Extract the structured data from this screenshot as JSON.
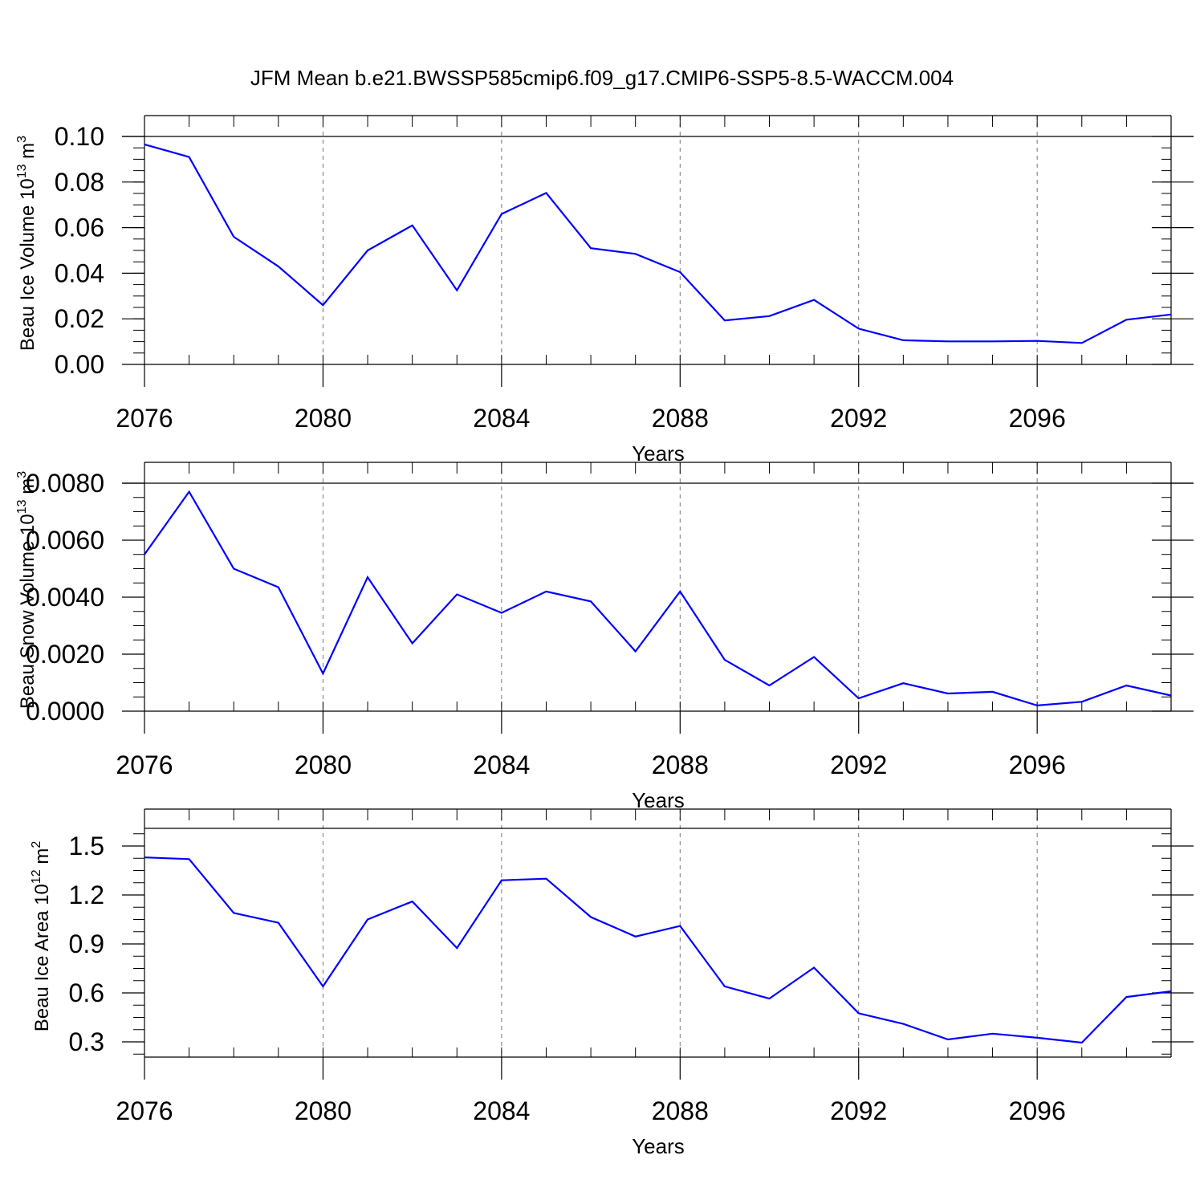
{
  "title": "JFM Mean b.e21.BWSSP585cmip6.f09_g17.CMIP6-SSP5-8.5-WACCM.004",
  "colors": {
    "line": "#0000ff",
    "axis": "#000000",
    "grid": "#777777"
  },
  "chart_data": [
    {
      "type": "line",
      "ylabel": "Beau Ice Volume 10",
      "ylabel_exp": "13",
      "ylabel_unit": "m",
      "ylabel_unit_exp": "3",
      "xlabel": "Years",
      "xlim": [
        2076,
        2099
      ],
      "ylim": [
        0.0,
        0.1
      ],
      "yticks": [
        0.0,
        0.02,
        0.04,
        0.06,
        0.08,
        0.1
      ],
      "ytick_labels": [
        "0.00",
        "0.02",
        "0.04",
        "0.06",
        "0.08",
        "0.10"
      ],
      "xticks": [
        2076,
        2080,
        2084,
        2088,
        2092,
        2096
      ],
      "xtick_labels": [
        "2076",
        "2080",
        "2084",
        "2088",
        "2092",
        "2096"
      ],
      "x": [
        2076,
        2077,
        2078,
        2079,
        2080,
        2081,
        2082,
        2083,
        2084,
        2085,
        2086,
        2087,
        2088,
        2089,
        2090,
        2091,
        2092,
        2093,
        2094,
        2095,
        2096,
        2097,
        2098,
        2099
      ],
      "values": [
        0.0965,
        0.091,
        0.056,
        0.043,
        0.026,
        0.05,
        0.061,
        0.0325,
        0.066,
        0.0752,
        0.051,
        0.0485,
        0.0405,
        0.0193,
        0.0212,
        0.0283,
        0.0157,
        0.0106,
        0.0101,
        0.0101,
        0.0103,
        0.0094,
        0.0196,
        0.0219
      ]
    },
    {
      "type": "line",
      "ylabel": "Beau Snow Volume 10",
      "ylabel_exp": "13",
      "ylabel_unit": "m",
      "ylabel_unit_exp": "3",
      "xlabel": "Years",
      "xlim": [
        2076,
        2099
      ],
      "ylim": [
        0.0,
        0.008
      ],
      "yticks": [
        0.0,
        0.002,
        0.004,
        0.006,
        0.008
      ],
      "ytick_labels": [
        "0.0000",
        "0.0020",
        "0.0040",
        "0.0060",
        "0.0080"
      ],
      "xticks": [
        2076,
        2080,
        2084,
        2088,
        2092,
        2096
      ],
      "xtick_labels": [
        "2076",
        "2080",
        "2084",
        "2088",
        "2092",
        "2096"
      ],
      "x": [
        2076,
        2077,
        2078,
        2079,
        2080,
        2081,
        2082,
        2083,
        2084,
        2085,
        2086,
        2087,
        2088,
        2089,
        2090,
        2091,
        2092,
        2093,
        2094,
        2095,
        2096,
        2097,
        2098,
        2099
      ],
      "values": [
        0.0055,
        0.0077,
        0.005,
        0.00435,
        0.00132,
        0.0047,
        0.00238,
        0.0041,
        0.00345,
        0.0042,
        0.00385,
        0.0021,
        0.0042,
        0.0018,
        0.0009,
        0.0019,
        0.00045,
        0.00098,
        0.00062,
        0.00068,
        0.0002,
        0.00033,
        0.0009,
        0.00055
      ]
    },
    {
      "type": "line",
      "ylabel": "Beau Ice Area 10",
      "ylabel_exp": "12",
      "ylabel_unit": "m",
      "ylabel_unit_exp": "2",
      "xlabel": "Years",
      "xlim": [
        2076,
        2099
      ],
      "ylim": [
        0.2,
        1.6
      ],
      "yticks": [
        0.3,
        0.6,
        0.9,
        1.2,
        1.5
      ],
      "ytick_labels": [
        "0.3",
        "0.6",
        "0.9",
        "1.2",
        "1.5"
      ],
      "xticks": [
        2076,
        2080,
        2084,
        2088,
        2092,
        2096
      ],
      "xtick_labels": [
        "2076",
        "2080",
        "2084",
        "2088",
        "2092",
        "2096"
      ],
      "x": [
        2076,
        2077,
        2078,
        2079,
        2080,
        2081,
        2082,
        2083,
        2084,
        2085,
        2086,
        2087,
        2088,
        2089,
        2090,
        2091,
        2092,
        2093,
        2094,
        2095,
        2096,
        2097,
        2098,
        2099
      ],
      "values": [
        1.43,
        1.42,
        1.09,
        1.03,
        0.64,
        1.05,
        1.16,
        0.875,
        1.29,
        1.3,
        1.065,
        0.945,
        1.01,
        0.64,
        0.565,
        0.755,
        0.475,
        0.41,
        0.315,
        0.35,
        0.325,
        0.295,
        0.575,
        0.61
      ]
    }
  ]
}
